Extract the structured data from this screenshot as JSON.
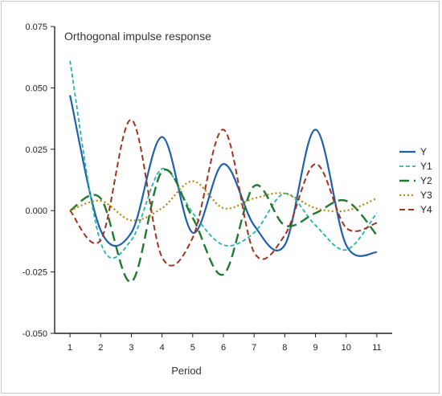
{
  "chart_data": {
    "type": "line",
    "title": "Orthogonal impulse response",
    "xlabel": "Period",
    "ylabel": "",
    "x": [
      1,
      2,
      3,
      4,
      5,
      6,
      7,
      8,
      9,
      10,
      11
    ],
    "xlim": [
      0.5,
      11.5
    ],
    "ylim": [
      -0.05,
      0.075
    ],
    "yticks": [
      "-0.050",
      "-0.025",
      "0.000",
      "0.025",
      "0.050",
      "0.075"
    ],
    "xticks": [
      "1",
      "2",
      "3",
      "4",
      "5",
      "6",
      "7",
      "8",
      "9",
      "10",
      "11"
    ],
    "legend_position": "right",
    "series": [
      {
        "name": "Y",
        "color": "#1f5fad",
        "dash": "solid",
        "values": [
          0.047,
          -0.008,
          -0.009,
          0.03,
          -0.009,
          0.019,
          -0.006,
          -0.014,
          0.033,
          -0.014,
          -0.017
        ]
      },
      {
        "name": "Y1",
        "color": "#20b5b0",
        "dash": "short",
        "values": [
          0.061,
          -0.013,
          -0.012,
          0.017,
          -0.001,
          -0.014,
          -0.009,
          0.007,
          -0.006,
          -0.016,
          -0.001
        ]
      },
      {
        "name": "Y2",
        "color": "#1e7a2e",
        "dash": "long",
        "values": [
          0.0,
          0.005,
          -0.029,
          0.016,
          -0.003,
          -0.026,
          0.01,
          -0.006,
          -0.001,
          0.004,
          -0.01
        ]
      },
      {
        "name": "Y3",
        "color": "#b8860b",
        "dash": "dot",
        "values": [
          0.0,
          0.004,
          -0.004,
          0.001,
          0.012,
          0.001,
          0.005,
          0.007,
          0.001,
          0.0,
          0.005
        ]
      },
      {
        "name": "Y4",
        "color": "#a0341f",
        "dash": "medium",
        "values": [
          0.0,
          -0.012,
          0.037,
          -0.019,
          -0.011,
          0.033,
          -0.017,
          -0.01,
          0.019,
          -0.007,
          -0.005
        ]
      }
    ]
  }
}
